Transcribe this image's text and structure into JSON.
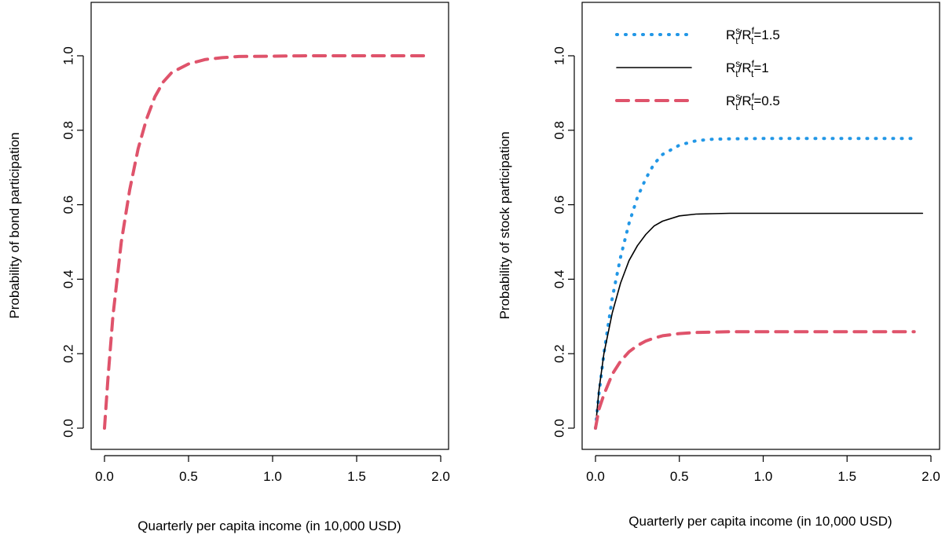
{
  "chart_data": [
    {
      "type": "line",
      "title": "",
      "xlabel": "Quarterly per capita income (in 10,000 USD)",
      "ylabel": "Probability of bond participation",
      "xlim": [
        0,
        2
      ],
      "ylim": [
        0,
        1
      ],
      "xticks": [
        "0.0",
        "0.5",
        "1.0",
        "1.5",
        "2.0"
      ],
      "yticks": [
        "0.0",
        "0.2",
        "0.4",
        "0.6",
        "0.8",
        "1.0"
      ],
      "grid": false,
      "legend": null,
      "series": [
        {
          "style": "dashed",
          "color": "#DF536B",
          "x": [
            0,
            0.02,
            0.05,
            0.1,
            0.15,
            0.2,
            0.25,
            0.3,
            0.35,
            0.4,
            0.5,
            0.6,
            0.7,
            0.8,
            1.0,
            1.2,
            1.5,
            1.9
          ],
          "y": [
            0,
            0.13,
            0.3,
            0.5,
            0.64,
            0.75,
            0.83,
            0.89,
            0.93,
            0.955,
            0.978,
            0.99,
            0.995,
            0.998,
            0.999,
            1.0,
            1.0,
            1.0
          ]
        }
      ]
    },
    {
      "type": "line",
      "title": "",
      "xlabel": "Quarterly per capita income (in 10,000 USD)",
      "ylabel": "Probability of stock participation",
      "xlim": [
        0,
        2
      ],
      "ylim": [
        0,
        1
      ],
      "xticks": [
        "0.0",
        "0.5",
        "1.0",
        "1.5",
        "2.0"
      ],
      "yticks": [
        "0.0",
        "0.2",
        "0.4",
        "0.6",
        "0.8",
        "1.0"
      ],
      "grid": false,
      "legend": "top-right",
      "series": [
        {
          "label_main": "R",
          "label_sup1": "s",
          "label_sub1": "t",
          "label_sep": "/R",
          "label_sup2": "f",
          "label_sub2": "t",
          "label_tail": "=1.5",
          "style": "dotted",
          "color": "#2297E6",
          "x": [
            0,
            0.02,
            0.05,
            0.1,
            0.15,
            0.2,
            0.25,
            0.3,
            0.35,
            0.4,
            0.5,
            0.6,
            0.7,
            0.8,
            1.0,
            1.2,
            1.5,
            1.9
          ],
          "y": [
            0,
            0.09,
            0.2,
            0.35,
            0.46,
            0.55,
            0.62,
            0.67,
            0.71,
            0.735,
            0.76,
            0.772,
            0.776,
            0.777,
            0.778,
            0.778,
            0.778,
            0.778
          ]
        },
        {
          "label_main": "R",
          "label_sup1": "s",
          "label_sub1": "t",
          "label_sep": "/R",
          "label_sup2": "f",
          "label_sub2": "t",
          "label_tail": "=1",
          "style": "solid",
          "color": "#000000",
          "x": [
            0,
            0.02,
            0.05,
            0.1,
            0.15,
            0.2,
            0.25,
            0.3,
            0.35,
            0.4,
            0.5,
            0.6,
            0.7,
            0.8,
            1.0,
            1.2,
            1.5,
            1.95
          ],
          "y": [
            0,
            0.1,
            0.2,
            0.31,
            0.39,
            0.45,
            0.49,
            0.52,
            0.543,
            0.556,
            0.57,
            0.575,
            0.576,
            0.577,
            0.577,
            0.577,
            0.577,
            0.577
          ]
        },
        {
          "label_main": "R",
          "label_sup1": "s",
          "label_sub1": "t",
          "label_sep": "/R",
          "label_sup2": "f",
          "label_sub2": "t",
          "label_tail": "=0.5",
          "style": "dashed",
          "color": "#DF536B",
          "x": [
            0,
            0.02,
            0.05,
            0.1,
            0.15,
            0.2,
            0.25,
            0.3,
            0.35,
            0.4,
            0.5,
            0.6,
            0.7,
            0.8,
            1.0,
            1.2,
            1.5,
            1.9
          ],
          "y": [
            0,
            0.05,
            0.09,
            0.145,
            0.18,
            0.205,
            0.222,
            0.234,
            0.242,
            0.248,
            0.254,
            0.257,
            0.258,
            0.259,
            0.259,
            0.259,
            0.259,
            0.259
          ]
        }
      ]
    }
  ]
}
